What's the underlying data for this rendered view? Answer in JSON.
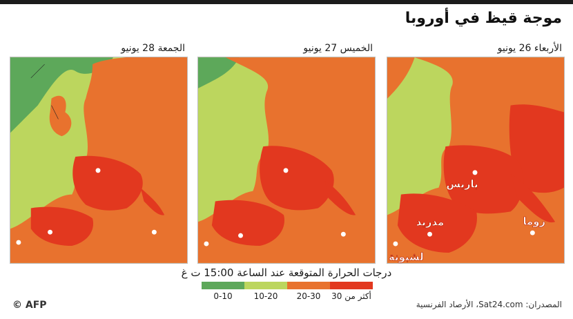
{
  "title": "موجة قيظ في أوروبا",
  "panels": [
    {
      "date": "الجمعة 28 يونيو"
    },
    {
      "date": "الخميس 27 يونيو"
    },
    {
      "date": "الأربعاء 26 يونيو"
    }
  ],
  "cities": {
    "paris": "باريس",
    "madrid": "مدريد",
    "rome": "روما",
    "lisbon": "لشبونة"
  },
  "legend": {
    "title": "درجات الحرارة المتوقعة عند الساعة 15:00 ت غ",
    "items": [
      {
        "label": "0-10",
        "color": "#5da85a"
      },
      {
        "label": "10-20",
        "color": "#bcd65e"
      },
      {
        "label": "20-30",
        "color": "#e8722e"
      },
      {
        "label": "أكثر من 30",
        "color": "#e2381f"
      }
    ]
  },
  "sources": "المصدران: Sat24.com، الأرصاد الفرنسية",
  "credit": "© AFP",
  "colors": {
    "sea_cold": "#5da85a",
    "sea_mild": "#bcd65e",
    "land_warm": "#e8722e",
    "land_hot": "#e2381f"
  }
}
